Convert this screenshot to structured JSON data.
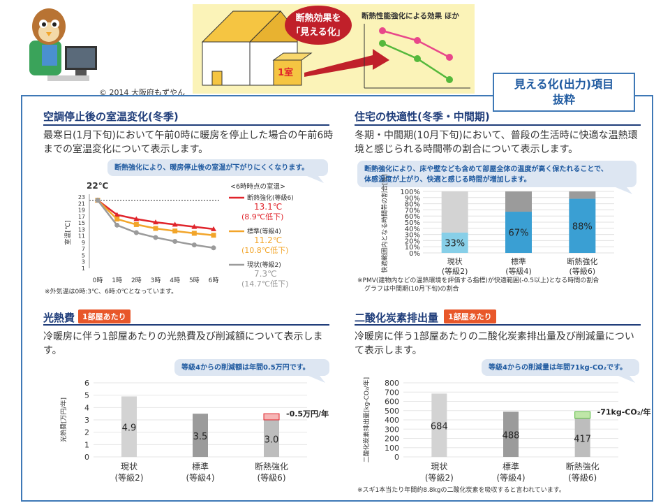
{
  "header": {
    "copyright": "© 2014 大阪府もずやん",
    "banner_bubble_line1": "断熱効果を",
    "banner_bubble_line2": "「見える化」",
    "banner_title": "断熱性能強化による効果 ほか",
    "room_label": "1室",
    "mieru_line1": "見える化(出力)項目",
    "mieru_line2": "抜粋"
  },
  "colors": {
    "accent_blue": "#1f3d7a",
    "frame_blue": "#3e78b6",
    "orange": "#e8572a",
    "red": "#e0242b",
    "yellow": "#f2a52a",
    "gray": "#9b9b9b",
    "light_blue": "#87cfe8",
    "mid_blue": "#3a9fd3"
  },
  "sections": {
    "room_temp": {
      "title": "空調停止後の室温変化(冬季)",
      "desc": "最寒日(1月下旬)において午前0時に暖房を停止した場合の午前6時までの室温変化について表示します。",
      "callout": "断熱強化により、暖房停止後の室温が下がりにくくなります。",
      "start_label": "22℃",
      "legend_header": "<6時時点の室温>",
      "footnote": "※外気温は0時:3℃、6時:0℃となっています。"
    },
    "comfort": {
      "title": "住宅の快適性(冬季・中間期)",
      "desc": "冬期・中間期(10月下旬)において、普段の生活時に快適な温熱環境と感じられる時間帯の割合について表示します。",
      "callout_line1": "断熱強化により、床や壁なども含めて部屋全体の温度が高く保たれることで、",
      "callout_line2": "体感温度が上がり、快適と感じる時間が増加します。",
      "footnote_line1": "※PMV(建物内などの温熱環境を評価する指標)が快適範囲(-0.5以上)となる時間の割合",
      "footnote_line2": "グラフは中間期(10月下旬)の割合"
    },
    "energy_cost": {
      "title": "光熱費",
      "tag": "1部屋あたり",
      "desc": "冷暖房に伴う1部屋あたりの光熱費及び削減額について表示します。",
      "callout": "等級4からの削減額は年間0.5万円です。",
      "reduction_label": "-0.5万円/年"
    },
    "co2": {
      "title": "二酸化炭素排出量",
      "tag": "1部屋あたり",
      "desc": "冷暖房に伴う1部屋あたりの二酸化炭素排出量及び削減量について表示します。",
      "callout": "等級4からの削減量は年間71kg-CO₂です。",
      "reduction_label": "-71kg-CO₂/年",
      "footnote": "※スギ1本当たり年間約8.8kgの二酸化炭素を吸収すると言われています。"
    }
  },
  "chart_data": [
    {
      "type": "line",
      "x": [
        "0時",
        "1時",
        "2時",
        "3時",
        "4時",
        "5時",
        "6時"
      ],
      "ylabel": "室温[℃]",
      "ylim": [
        1,
        23
      ],
      "yticks": [
        1,
        3,
        5,
        7,
        9,
        11,
        13,
        15,
        17,
        19,
        21,
        23
      ],
      "reference_line": 22,
      "series": [
        {
          "name": "断熱強化(等級6)",
          "values": [
            22,
            17.5,
            16.2,
            15.2,
            14.5,
            13.8,
            13.1
          ],
          "color": "#e0242b",
          "end_value": "13.1℃",
          "end_drop": "(8.9℃低下)"
        },
        {
          "name": "標準(等級4)",
          "values": [
            22,
            16.2,
            14.5,
            13.3,
            12.5,
            11.8,
            11.2
          ],
          "color": "#f2a52a",
          "end_value": "11.2℃",
          "end_drop": "(10.8℃低下)"
        },
        {
          "name": "現状(等級2)",
          "values": [
            22,
            14.3,
            12.0,
            10.5,
            9.3,
            8.2,
            7.3
          ],
          "color": "#9b9b9b",
          "end_value": "7.3℃",
          "end_drop": "(14.7℃低下)"
        }
      ]
    },
    {
      "type": "bar",
      "stacked": true,
      "categories": [
        [
          "現状",
          "(等級2)"
        ],
        [
          "標準",
          "(等級4)"
        ],
        [
          "断熱強化",
          "(等級6)"
        ]
      ],
      "values": [
        33,
        67,
        88
      ],
      "value_labels": [
        "33%",
        "67%",
        "88%"
      ],
      "bar_colors": [
        "#87cfe8",
        "#3a9fd3",
        "#3a9fd3"
      ],
      "remainder_colors": [
        "#d3d3d3",
        "#9b9b9b",
        "#9b9b9b"
      ],
      "ylabel": "快適範囲内となる時間帯の割合[%]",
      "ylim": [
        0,
        100
      ],
      "yticks": [
        "0%",
        "10%",
        "20%",
        "30%",
        "40%",
        "50%",
        "60%",
        "70%",
        "80%",
        "90%",
        "100%"
      ]
    },
    {
      "type": "bar",
      "categories": [
        [
          "現状",
          "(等級2)"
        ],
        [
          "標準",
          "(等級4)"
        ],
        [
          "断熱強化",
          "(等級6)"
        ]
      ],
      "values": [
        4.9,
        3.5,
        3.0
      ],
      "value_labels": [
        "4.9",
        "3.5",
        "3.0"
      ],
      "reduction": 0.5,
      "bar_colors": [
        "#d3d3d3",
        "#9b9b9b",
        "#bdbdbd"
      ],
      "ylabel": "光熱費[万円/年]",
      "ylim": [
        0,
        6
      ],
      "yticks": [
        0,
        1,
        2,
        3,
        4,
        5,
        6
      ]
    },
    {
      "type": "bar",
      "categories": [
        [
          "現状",
          "(等級2)"
        ],
        [
          "標準",
          "(等級4)"
        ],
        [
          "断熱強化",
          "(等級6)"
        ]
      ],
      "values": [
        684,
        488,
        417
      ],
      "value_labels": [
        "684",
        "488",
        "417"
      ],
      "reduction": 71,
      "bar_colors": [
        "#d3d3d3",
        "#9b9b9b",
        "#bdbdbd"
      ],
      "ylabel": "二酸化炭素排出量[kg-CO₂/年]",
      "ylim": [
        0,
        800
      ],
      "yticks": [
        0,
        100,
        200,
        300,
        400,
        500,
        600,
        700,
        800
      ]
    }
  ]
}
